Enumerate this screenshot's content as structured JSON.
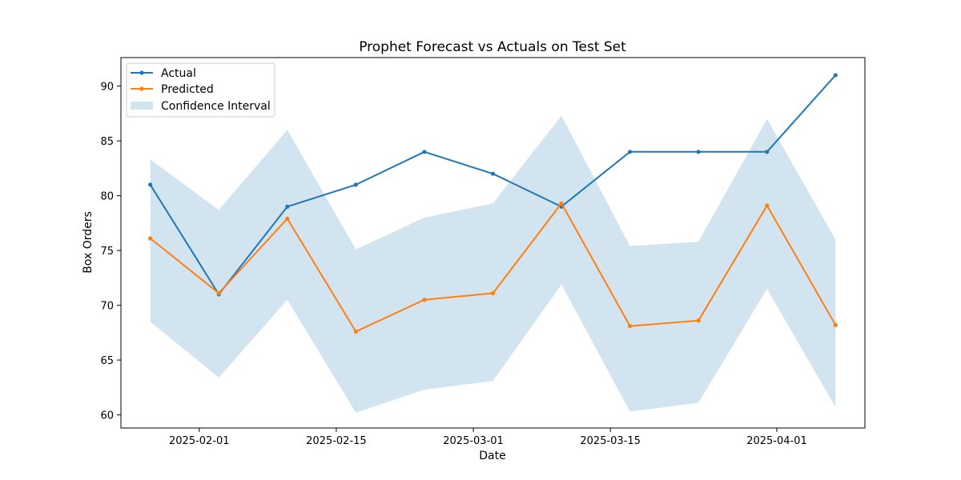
{
  "chart_data": {
    "type": "line",
    "title": "Prophet Forecast vs Actuals on Test Set",
    "xlabel": "Date",
    "ylabel": "Box Orders",
    "x": [
      "2025-01-27",
      "2025-02-03",
      "2025-02-10",
      "2025-02-17",
      "2025-02-24",
      "2025-03-03",
      "2025-03-10",
      "2025-03-17",
      "2025-03-24",
      "2025-03-31",
      "2025-04-07"
    ],
    "xlim": [
      "2025-01-24",
      "2025-04-10"
    ],
    "ylim": [
      58.8,
      92.6
    ],
    "x_ticks": [
      "2025-02-01",
      "2025-02-15",
      "2025-03-01",
      "2025-03-15",
      "2025-04-01"
    ],
    "y_ticks": [
      60,
      65,
      70,
      75,
      80,
      85,
      90
    ],
    "series": [
      {
        "name": "Actual",
        "color": "#1f77b4",
        "marker": "point",
        "values": [
          81,
          71,
          79,
          81,
          84,
          82,
          79,
          84,
          84,
          84,
          91
        ]
      },
      {
        "name": "Predicted",
        "color": "#ff7f0e",
        "marker": "point",
        "values": [
          76.1,
          71.1,
          77.9,
          67.6,
          70.5,
          71.1,
          79.3,
          68.1,
          68.6,
          79.1,
          68.2
        ]
      }
    ],
    "confidence_interval": {
      "name": "Confidence Interval",
      "color": "#1f77b4",
      "lower": [
        68.5,
        63.4,
        70.5,
        60.2,
        62.3,
        63.1,
        71.9,
        60.3,
        61.1,
        71.5,
        60.7
      ],
      "upper": [
        83.3,
        78.7,
        86.0,
        75.1,
        78.0,
        79.3,
        87.3,
        75.4,
        75.8,
        87.0,
        76.0
      ]
    },
    "legend": {
      "position": "top-left",
      "entries": [
        "Actual",
        "Predicted",
        "Confidence Interval"
      ]
    },
    "grid": false
  }
}
